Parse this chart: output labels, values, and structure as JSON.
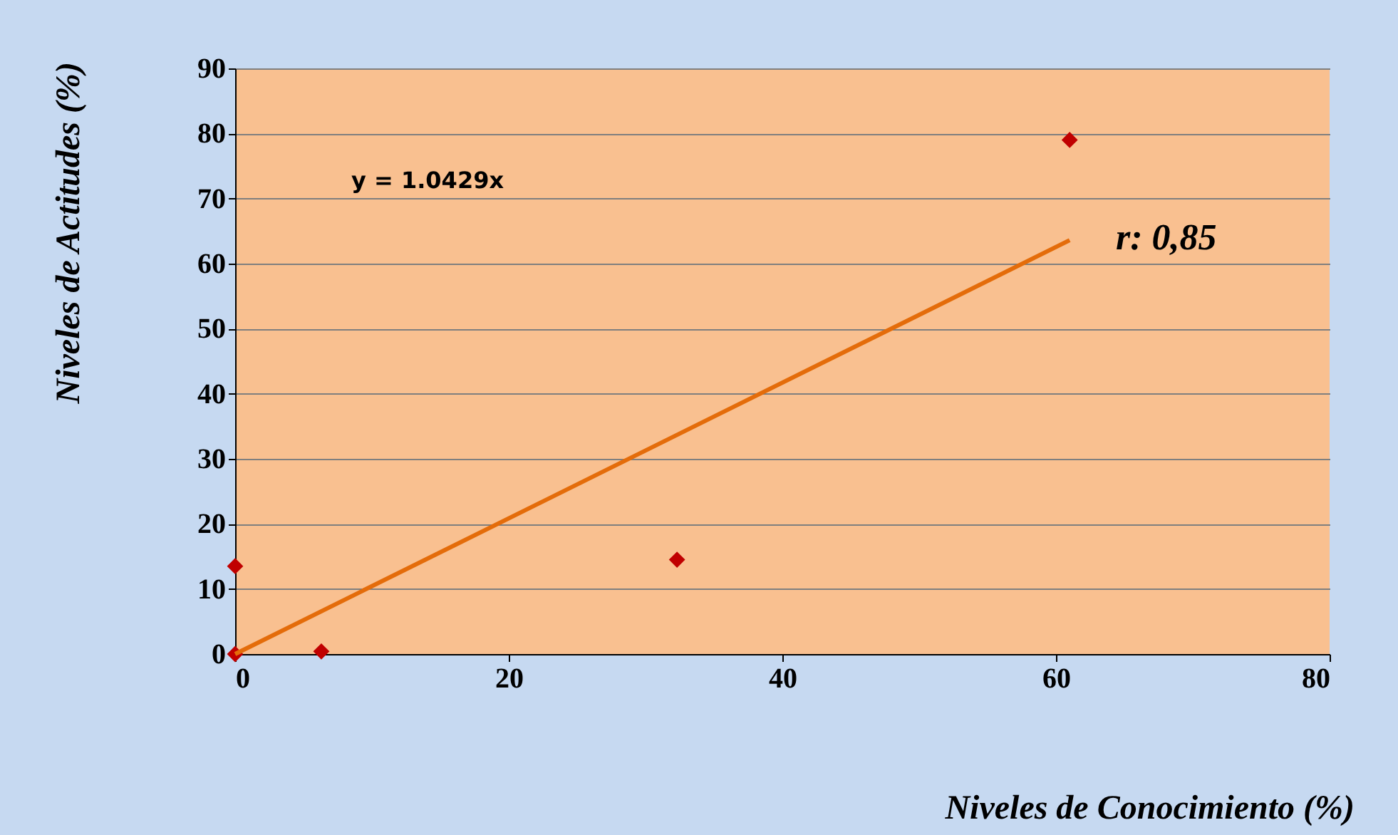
{
  "chart_data": {
    "type": "scatter",
    "xlabel": "Niveles de Conocimiento (%)",
    "ylabel": "Niveles de Actitudes (%)",
    "xlim": [
      0,
      80
    ],
    "xticks": [
      0,
      20,
      40,
      60,
      80
    ],
    "ylim": [
      0,
      90
    ],
    "yticks": [
      0,
      10,
      20,
      30,
      40,
      50,
      60,
      70,
      80,
      90
    ],
    "grid": "y",
    "series": [
      {
        "color": "#c00000",
        "marker": "diamond",
        "x": [
          0,
          0,
          6.3,
          32.3,
          61
        ],
        "values": [
          13.5,
          0,
          0.4,
          14.5,
          79
        ]
      },
      {
        "type": "line",
        "color": "#e46c0a",
        "x": [
          0,
          61
        ],
        "values": [
          0,
          63.6
        ]
      }
    ],
    "annotations": [
      "y = 1.0429x",
      "r: 0,85"
    ]
  }
}
